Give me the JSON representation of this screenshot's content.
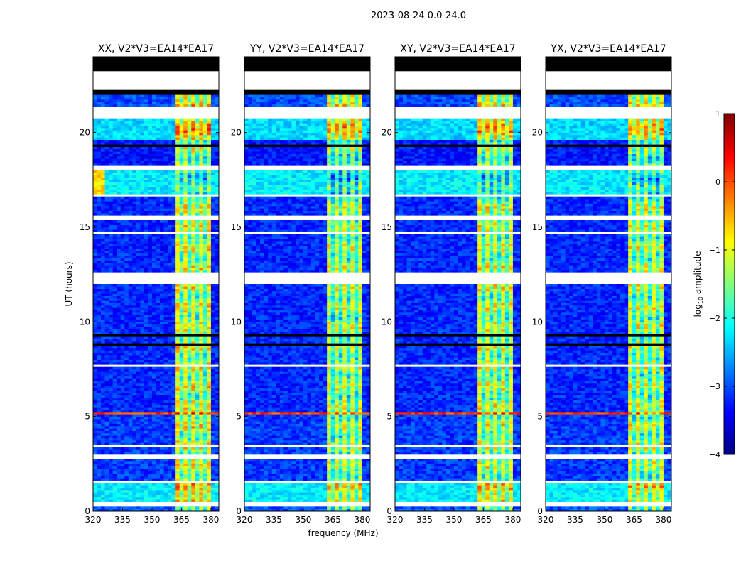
{
  "figure_title": "2023-08-24 0.0-24.0",
  "chart_data": {
    "type": "heatmap",
    "title": "2023-08-24 0.0-24.0",
    "xlabel": "frequency (MHz)",
    "ylabel": "UT (hours)",
    "xlim": [
      320,
      384
    ],
    "ylim": [
      0,
      24
    ],
    "xticks": [
      320,
      335,
      350,
      365,
      380
    ],
    "yticks": [
      0,
      5,
      10,
      15,
      20
    ],
    "colormap": "jet",
    "colorbar": {
      "label_main": "log",
      "label_sub": "10",
      "label_rest": " amplitude",
      "range": [
        -4,
        1
      ],
      "ticks": [
        "−4",
        "−3",
        "−2",
        "−1",
        "0",
        "1"
      ],
      "tick_values": [
        -4,
        -3,
        -2,
        -1,
        0,
        1
      ]
    },
    "rfi_band_mhz": [
      362,
      380
    ],
    "rfi_channel_gaps_mhz": [
      364.5,
      369,
      373.5,
      377.5
    ],
    "panels": [
      {
        "title": "XX, V2*V3=EA14*EA17",
        "high_offset": 0.1,
        "seed": 11
      },
      {
        "title": "YY, V2*V3=EA14*EA17",
        "high_offset": -0.1,
        "seed": 23
      },
      {
        "title": "XY, V2*V3=EA14*EA17",
        "high_offset": 0.0,
        "seed": 37
      },
      {
        "title": "YX, V2*V3=EA14*EA17",
        "high_offset": -0.05,
        "seed": 51
      }
    ],
    "flagged_white_hours": [
      [
        22.2,
        23.3
      ],
      [
        20.8,
        21.4
      ],
      [
        12.0,
        12.6
      ],
      [
        15.35,
        15.6
      ],
      [
        14.6,
        14.7
      ],
      [
        16.6,
        16.7
      ],
      [
        18.0,
        18.3
      ],
      [
        1.5,
        1.6
      ],
      [
        0.3,
        0.45
      ],
      [
        2.8,
        3.0
      ],
      [
        7.6,
        7.7
      ],
      [
        10.1,
        10.15
      ],
      [
        3.4,
        3.45
      ],
      [
        4.2,
        4.25
      ],
      [
        13.0,
        13.05
      ]
    ],
    "flagged_black_hours": [
      [
        23.5,
        24.0
      ],
      [
        23.3,
        23.35
      ],
      [
        23.4,
        23.45
      ],
      [
        22.0,
        22.2
      ],
      [
        9.3,
        9.4
      ],
      [
        8.8,
        8.85
      ],
      [
        8.2,
        8.25
      ],
      [
        7.2,
        7.25
      ],
      [
        6.0,
        6.05
      ],
      [
        4.6,
        4.65
      ],
      [
        0.45,
        0.5
      ],
      [
        19.0,
        19.05
      ],
      [
        18.6,
        18.65
      ],
      [
        19.3,
        19.35
      ]
    ],
    "segments_hours_low_high": [
      [
        21.4,
        22.0,
        -3.0,
        -0.6
      ],
      [
        19.6,
        20.8,
        -2.3,
        -0.4
      ],
      [
        18.3,
        19.6,
        -3.3,
        -1.2
      ],
      [
        16.7,
        18.0,
        -2.2,
        -1.6
      ],
      [
        12.6,
        16.6,
        -3.2,
        -1.0
      ],
      [
        5.3,
        12.0,
        -3.2,
        -1.0
      ],
      [
        5.1,
        5.2,
        0.1,
        0.3
      ],
      [
        1.6,
        5.1,
        -3.1,
        -1.0
      ],
      [
        0.5,
        1.5,
        -2.2,
        -0.6
      ],
      [
        0.0,
        0.3,
        -3.0,
        -1.5
      ]
    ]
  }
}
